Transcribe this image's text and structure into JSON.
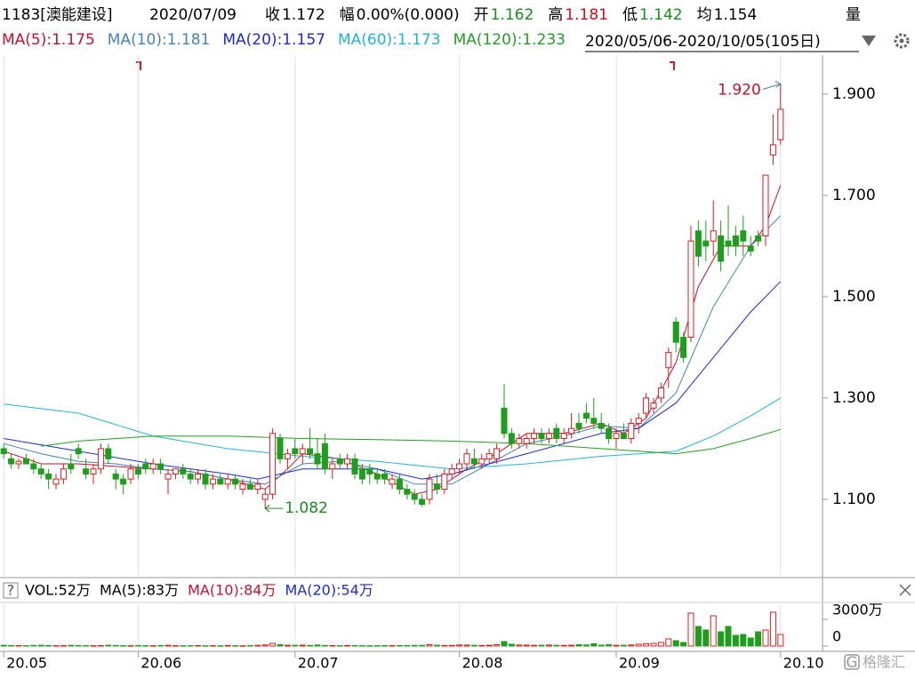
{
  "chart_data": {
    "type": "candlestick",
    "title": "1183[澳能建设]",
    "date": "2020/07/09",
    "quote": [
      {
        "label": "收",
        "value": "1.172",
        "color": "#000000"
      },
      {
        "label": "幅",
        "value": "0.00%(0.000)",
        "color": "#000000"
      },
      {
        "label": "开",
        "value": "1.162",
        "color": "#1a8c1a"
      },
      {
        "label": "高",
        "value": "1.181",
        "color": "#c8101e"
      },
      {
        "label": "低",
        "value": "1.142",
        "color": "#1a8c1a"
      },
      {
        "label": "均",
        "value": "1.154",
        "color": "#000000"
      }
    ],
    "quote_extra": "量",
    "range_label": "2020/05/06-2020/10/05(105日)",
    "up_color": "#e0191e",
    "down_color": "#1d9f1d",
    "candles": [
      [
        1.2,
        1.21,
        1.18,
        1.19
      ],
      [
        1.18,
        1.19,
        1.16,
        1.17
      ],
      [
        1.17,
        1.18,
        1.16,
        1.175
      ],
      [
        1.18,
        1.19,
        1.17,
        1.17
      ],
      [
        1.17,
        1.18,
        1.15,
        1.16
      ],
      [
        1.16,
        1.17,
        1.14,
        1.15
      ],
      [
        1.15,
        1.16,
        1.12,
        1.14
      ],
      [
        1.13,
        1.15,
        1.12,
        1.14
      ],
      [
        1.14,
        1.17,
        1.13,
        1.16
      ],
      [
        1.17,
        1.19,
        1.15,
        1.16
      ],
      [
        1.2,
        1.21,
        1.18,
        1.19
      ],
      [
        1.16,
        1.18,
        1.14,
        1.15
      ],
      [
        1.15,
        1.17,
        1.13,
        1.16
      ],
      [
        1.16,
        1.21,
        1.15,
        1.2
      ],
      [
        1.2,
        1.21,
        1.17,
        1.18
      ],
      [
        1.15,
        1.16,
        1.12,
        1.14
      ],
      [
        1.14,
        1.15,
        1.11,
        1.13
      ],
      [
        1.14,
        1.17,
        1.13,
        1.16
      ],
      [
        1.16,
        1.17,
        1.14,
        1.15
      ],
      [
        1.17,
        1.18,
        1.15,
        1.16
      ],
      [
        1.16,
        1.18,
        1.15,
        1.17
      ],
      [
        1.17,
        1.18,
        1.15,
        1.16
      ],
      [
        1.14,
        1.16,
        1.11,
        1.15
      ],
      [
        1.15,
        1.16,
        1.14,
        1.16
      ],
      [
        1.16,
        1.17,
        1.14,
        1.15
      ],
      [
        1.15,
        1.16,
        1.13,
        1.14
      ],
      [
        1.14,
        1.16,
        1.13,
        1.15
      ],
      [
        1.15,
        1.16,
        1.12,
        1.13
      ],
      [
        1.13,
        1.15,
        1.12,
        1.14
      ],
      [
        1.14,
        1.15,
        1.13,
        1.13
      ],
      [
        1.13,
        1.15,
        1.12,
        1.14
      ],
      [
        1.14,
        1.15,
        1.12,
        1.13
      ],
      [
        1.12,
        1.14,
        1.11,
        1.13
      ],
      [
        1.13,
        1.14,
        1.12,
        1.12
      ],
      [
        1.12,
        1.14,
        1.11,
        1.13
      ],
      [
        1.1,
        1.12,
        1.082,
        1.11
      ],
      [
        1.11,
        1.24,
        1.1,
        1.23
      ],
      [
        1.22,
        1.23,
        1.17,
        1.18
      ],
      [
        1.18,
        1.2,
        1.16,
        1.19
      ],
      [
        1.2,
        1.22,
        1.18,
        1.19
      ],
      [
        1.19,
        1.21,
        1.17,
        1.2
      ],
      [
        1.2,
        1.24,
        1.18,
        1.19
      ],
      [
        1.19,
        1.22,
        1.16,
        1.17
      ],
      [
        1.21,
        1.23,
        1.15,
        1.16
      ],
      [
        1.16,
        1.18,
        1.14,
        1.17
      ],
      [
        1.18,
        1.19,
        1.16,
        1.17
      ],
      [
        1.17,
        1.19,
        1.16,
        1.18
      ],
      [
        1.18,
        1.19,
        1.14,
        1.15
      ],
      [
        1.16,
        1.17,
        1.13,
        1.14
      ],
      [
        1.16,
        1.17,
        1.13,
        1.15
      ],
      [
        1.15,
        1.16,
        1.13,
        1.14
      ],
      [
        1.15,
        1.16,
        1.13,
        1.14
      ],
      [
        1.13,
        1.15,
        1.12,
        1.14
      ],
      [
        1.14,
        1.15,
        1.11,
        1.12
      ],
      [
        1.12,
        1.13,
        1.1,
        1.11
      ],
      [
        1.11,
        1.12,
        1.09,
        1.1
      ],
      [
        1.1,
        1.11,
        1.085,
        1.09
      ],
      [
        1.1,
        1.15,
        1.09,
        1.14
      ],
      [
        1.13,
        1.15,
        1.11,
        1.12
      ],
      [
        1.12,
        1.16,
        1.11,
        1.15
      ],
      [
        1.15,
        1.17,
        1.14,
        1.16
      ],
      [
        1.16,
        1.18,
        1.15,
        1.17
      ],
      [
        1.17,
        1.2,
        1.16,
        1.19
      ],
      [
        1.18,
        1.2,
        1.16,
        1.17
      ],
      [
        1.17,
        1.19,
        1.16,
        1.18
      ],
      [
        1.18,
        1.2,
        1.17,
        1.19
      ],
      [
        1.18,
        1.21,
        1.17,
        1.2
      ],
      [
        1.28,
        1.328,
        1.22,
        1.23
      ],
      [
        1.23,
        1.24,
        1.2,
        1.21
      ],
      [
        1.21,
        1.23,
        1.2,
        1.22
      ],
      [
        1.21,
        1.23,
        1.2,
        1.22
      ],
      [
        1.22,
        1.24,
        1.21,
        1.23
      ],
      [
        1.23,
        1.24,
        1.21,
        1.22
      ],
      [
        1.22,
        1.24,
        1.21,
        1.23
      ],
      [
        1.24,
        1.25,
        1.21,
        1.22
      ],
      [
        1.22,
        1.24,
        1.21,
        1.23
      ],
      [
        1.23,
        1.27,
        1.22,
        1.24
      ],
      [
        1.25,
        1.27,
        1.23,
        1.24
      ],
      [
        1.27,
        1.29,
        1.25,
        1.26
      ],
      [
        1.26,
        1.3,
        1.24,
        1.25
      ],
      [
        1.25,
        1.27,
        1.23,
        1.24
      ],
      [
        1.24,
        1.25,
        1.21,
        1.22
      ],
      [
        1.22,
        1.24,
        1.2,
        1.23
      ],
      [
        1.23,
        1.25,
        1.22,
        1.22
      ],
      [
        1.22,
        1.26,
        1.21,
        1.25
      ],
      [
        1.25,
        1.27,
        1.23,
        1.26
      ],
      [
        1.27,
        1.31,
        1.26,
        1.3
      ],
      [
        1.28,
        1.3,
        1.27,
        1.29
      ],
      [
        1.3,
        1.33,
        1.29,
        1.32
      ],
      [
        1.36,
        1.4,
        1.32,
        1.39
      ],
      [
        1.45,
        1.46,
        1.39,
        1.41
      ],
      [
        1.42,
        1.43,
        1.37,
        1.38
      ],
      [
        1.42,
        1.64,
        1.41,
        1.61
      ],
      [
        1.63,
        1.65,
        1.56,
        1.58
      ],
      [
        1.61,
        1.65,
        1.57,
        1.6
      ],
      [
        1.61,
        1.69,
        1.58,
        1.63
      ],
      [
        1.62,
        1.65,
        1.55,
        1.57
      ],
      [
        1.61,
        1.68,
        1.58,
        1.6
      ],
      [
        1.62,
        1.64,
        1.58,
        1.6
      ],
      [
        1.63,
        1.66,
        1.58,
        1.61
      ],
      [
        1.6,
        1.62,
        1.58,
        1.59
      ],
      [
        1.62,
        1.63,
        1.6,
        1.61
      ],
      [
        1.62,
        1.74,
        1.6,
        1.74
      ],
      [
        1.78,
        1.86,
        1.76,
        1.8
      ],
      [
        1.81,
        1.92,
        1.8,
        1.87
      ]
    ],
    "series": [
      {
        "name": "MA(5):1.175",
        "color": "#c8102e",
        "x": [
          0,
          5,
          10,
          15,
          20,
          25,
          30,
          35,
          38,
          40,
          45,
          50,
          55,
          58,
          62,
          66,
          70,
          75,
          80,
          83,
          86,
          90,
          93,
          96,
          100,
          102,
          104
        ],
        "values": [
          1.195,
          1.17,
          1.17,
          1.165,
          1.16,
          1.155,
          1.14,
          1.12,
          1.16,
          1.19,
          1.18,
          1.15,
          1.11,
          1.12,
          1.16,
          1.19,
          1.23,
          1.23,
          1.25,
          1.23,
          1.26,
          1.37,
          1.52,
          1.6,
          1.6,
          1.64,
          1.72
        ]
      },
      {
        "name": "MA(10):1.181",
        "color": "#4682b4",
        "x": [
          0,
          5,
          10,
          15,
          20,
          25,
          30,
          35,
          40,
          45,
          50,
          55,
          60,
          65,
          70,
          75,
          80,
          85,
          90,
          95,
          100,
          104
        ],
        "values": [
          1.21,
          1.19,
          1.175,
          1.17,
          1.16,
          1.155,
          1.14,
          1.13,
          1.17,
          1.175,
          1.16,
          1.13,
          1.13,
          1.17,
          1.21,
          1.225,
          1.245,
          1.24,
          1.31,
          1.48,
          1.6,
          1.66
        ]
      },
      {
        "name": "MA(20):1.157",
        "color": "#1d2bd0",
        "x": [
          0,
          10,
          20,
          30,
          34,
          40,
          50,
          56,
          60,
          70,
          80,
          85,
          90,
          95,
          100,
          104
        ],
        "values": [
          1.22,
          1.195,
          1.17,
          1.15,
          1.14,
          1.16,
          1.16,
          1.14,
          1.15,
          1.19,
          1.23,
          1.24,
          1.29,
          1.38,
          1.47,
          1.53
        ]
      },
      {
        "name": "MA(60):1.173",
        "color": "#20b5d5",
        "x": [
          0,
          10,
          20,
          30,
          40,
          50,
          60,
          70,
          80,
          90,
          95,
          100,
          104
        ],
        "values": [
          1.288,
          1.27,
          1.225,
          1.2,
          1.185,
          1.175,
          1.16,
          1.17,
          1.185,
          1.195,
          1.225,
          1.265,
          1.3
        ]
      },
      {
        "name": "MA(120):1.233",
        "color": "#22a022",
        "x": [
          5,
          10,
          20,
          30,
          40,
          50,
          60,
          70,
          80,
          90,
          95,
          100,
          104
        ],
        "values": [
          1.205,
          1.215,
          1.225,
          1.225,
          1.22,
          1.218,
          1.215,
          1.21,
          1.2,
          1.19,
          1.2,
          1.22,
          1.238
        ]
      }
    ],
    "xlim": [
      -0.5,
      109.5
    ],
    "xticks": [
      {
        "value": 0,
        "label": "20.05"
      },
      {
        "value": 18,
        "label": "20.06"
      },
      {
        "value": 39,
        "label": "20.07"
      },
      {
        "value": 61,
        "label": "20.08"
      },
      {
        "value": 82,
        "label": "20.09"
      },
      {
        "value": 104,
        "label": "20.10"
      }
    ],
    "ylim": [
      0.949,
      1.977
    ],
    "yticks": [
      {
        "value": 1.1,
        "label": "1.100"
      },
      {
        "value": 1.3,
        "label": "1.300"
      },
      {
        "value": 1.5,
        "label": "1.500"
      },
      {
        "value": 1.7,
        "label": "1.700"
      },
      {
        "value": 1.9,
        "label": "1.900"
      }
    ],
    "grid": true,
    "annotations": [
      {
        "text": "1.920"
      },
      {
        "text": "1.082"
      }
    ],
    "volume": {
      "values": [
        80,
        60,
        50,
        40,
        70,
        90,
        60,
        40,
        50,
        80,
        60,
        40,
        30,
        50,
        90,
        60,
        40,
        30,
        50,
        40,
        30,
        60,
        80,
        40,
        30,
        40,
        50,
        30,
        40,
        30,
        60,
        40,
        30,
        50,
        80,
        120,
        300,
        150,
        90,
        80,
        100,
        70,
        120,
        60,
        50,
        40,
        60,
        50,
        40,
        30,
        40,
        50,
        40,
        60,
        50,
        70,
        80,
        150,
        90,
        60,
        70,
        120,
        100,
        80,
        60,
        90,
        150,
        500,
        200,
        120,
        100,
        80,
        90,
        110,
        80,
        70,
        90,
        150,
        120,
        250,
        100,
        150,
        80,
        90,
        120,
        200,
        250,
        300,
        400,
        800,
        600,
        400,
        3700,
        2200,
        1800,
        3400,
        1600,
        2200,
        1200,
        1300,
        900,
        1600,
        1800,
        3800,
        1300
      ],
      "ylim": [
        0,
        4700
      ],
      "yticks": [
        0,
        {
          "value": 3000,
          "label": "3000万"
        }
      ],
      "info": [
        {
          "text": "VOL:52万",
          "color": "#000000"
        },
        {
          "text": "MA(5):83万",
          "color": "#000000"
        },
        {
          "text": "MA(10):84万",
          "color": "#c8102e"
        },
        {
          "text": "MA(20):54万",
          "color": "#1d2bd0"
        }
      ]
    },
    "watermark": "格隆汇"
  }
}
